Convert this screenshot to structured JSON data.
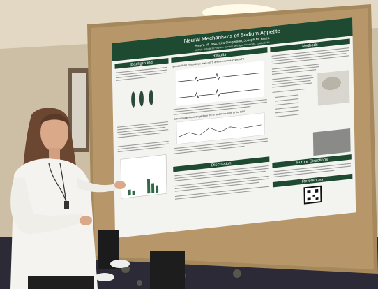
{
  "poster": {
    "title": "Neural Mechanisms of Sodium Appetite",
    "authors": "Amyra M. Issa, Kira Gregerson, Joseph M. Breza",
    "affiliation": "McNair Scholars Program, Eastern Michigan University, Ypsilanti, MI",
    "sections": {
      "background": "Background",
      "results": "Results",
      "methods": "Methods",
      "discussion": "Discussion",
      "future": "Future Directions",
      "references": "References"
    },
    "figure_titles": [
      "Extracellular Recordings from rNTS and A-neurons in the NTS",
      "Extracellular Recordings from rNTS and A-neurons in the NTS"
    ]
  }
}
